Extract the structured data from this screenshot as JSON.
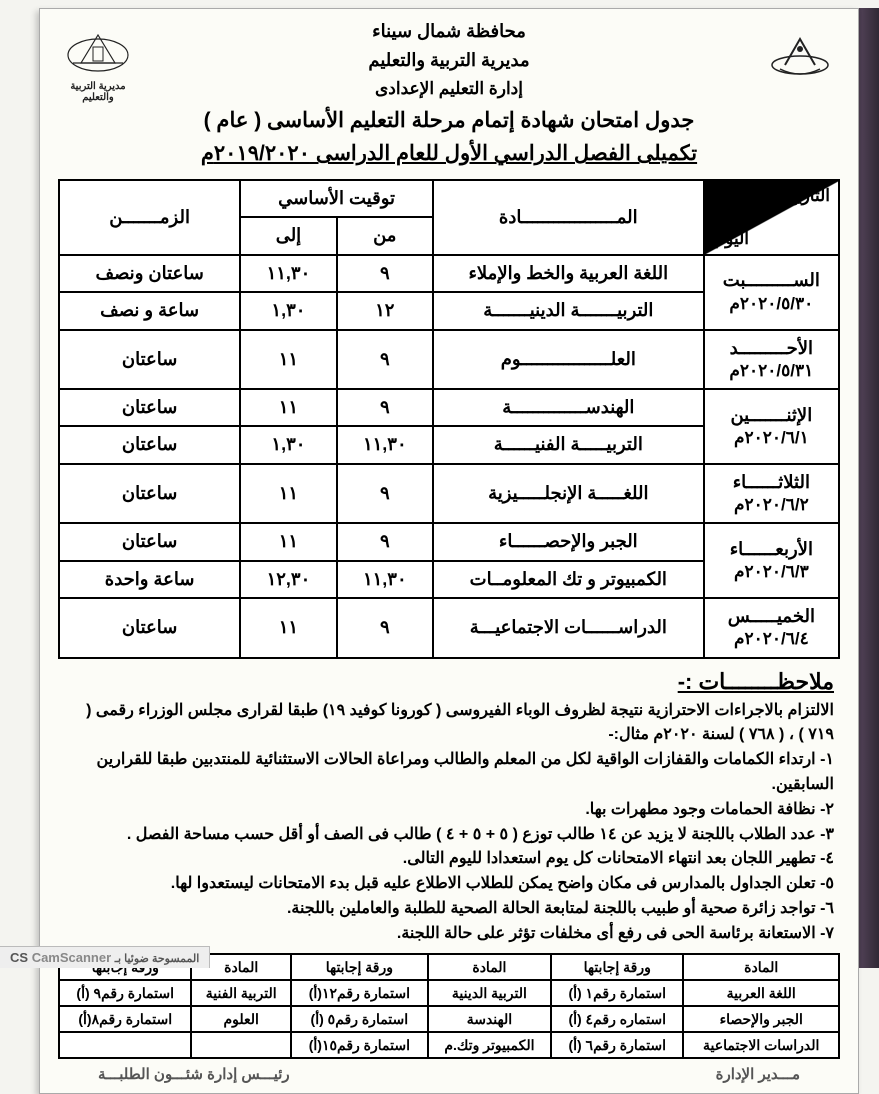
{
  "header": {
    "line1": "محافظة شمال سيناء",
    "line2": "مديرية التربية والتعليم",
    "line3": "إدارة التعليم الإعدادى",
    "line4": "جدول امتحان شهادة إتمام مرحلة التعليم الأساسى ( عام )",
    "line5": "تكميلى الفصل الدراسي الأول للعام الدراسى ٢٠١٩/٢٠٢٠م",
    "logo_left_caption": "مديرية التربية والتعليم"
  },
  "mainTable": {
    "head": {
      "date_top": "التاريخ",
      "date_bottom": "اليوم",
      "subject": "المــــــــــــــــــادة",
      "timing": "توقيت الأساسي",
      "from": "من",
      "to": "إلى",
      "duration": "الزمـــــــن"
    },
    "colWidths": {
      "date": "118px",
      "subject": "236px",
      "from": "84px",
      "to": "84px",
      "dur": "158px"
    },
    "rows": [
      {
        "day": "الســـــــــبت",
        "date": "٢٠٢٠/٥/٣٠م",
        "subjects": [
          {
            "subject": "اللغة العربية والخط والإملاء",
            "from": "٩",
            "to": "١١,٣٠",
            "dur": "ساعتان ونصف"
          },
          {
            "subject": "التربيـــــــة الدينيـــــــة",
            "from": "١٢",
            "to": "١,٣٠",
            "dur": "ساعة و نصف"
          }
        ]
      },
      {
        "day": "الأحـــــــــد",
        "date": "٢٠٢٠/٥/٣١م",
        "subjects": [
          {
            "subject": "العلـــــــــــــــــوم",
            "from": "٩",
            "to": "١١",
            "dur": "ساعتان"
          }
        ]
      },
      {
        "day": "الإثنـــــــين",
        "date": "٢٠٢٠/٦/١م",
        "subjects": [
          {
            "subject": "الهندســــــــــــــة",
            "from": "٩",
            "to": "١١",
            "dur": "ساعتان"
          },
          {
            "subject": "التربيـــــة الفنيــــــة",
            "from": "١١,٣٠",
            "to": "١,٣٠",
            "dur": "ساعتان"
          }
        ]
      },
      {
        "day": "الثلاثــــــاء",
        "date": "٢٠٢٠/٦/٢م",
        "subjects": [
          {
            "subject": "اللغـــــة الإنجلـــــيزية",
            "from": "٩",
            "to": "١١",
            "dur": "ساعتان"
          }
        ]
      },
      {
        "day": "الأربعــــــاء",
        "date": "٢٠٢٠/٦/٣م",
        "subjects": [
          {
            "subject": "الجبر والإحصــــــاء",
            "from": "٩",
            "to": "١١",
            "dur": "ساعتان"
          },
          {
            "subject": "الكمبيوتر و تك المعلومــات",
            "from": "١١,٣٠",
            "to": "١٢,٣٠",
            "dur": "ساعة واحدة"
          }
        ]
      },
      {
        "day": "الخميـــــس",
        "date": "٢٠٢٠/٦/٤م",
        "subjects": [
          {
            "subject": "الدراســــــات الاجتماعيـــة",
            "from": "٩",
            "to": "١١",
            "dur": "ساعتان"
          }
        ]
      }
    ]
  },
  "notes": {
    "title": "ملاحظــــــــات :-",
    "intro": "الالتزام بالاجراءات الاحترازية نتيجة لظروف الوباء الفيروسى ( كورونا كوفيد ١٩) طبقا لقرارى مجلس الوزراء رقمى ( ٧١٩ ) ، ( ٧٦٨ ) لسنة ٢٠٢٠م مثال:-",
    "items": [
      "١- ارتداء الكمامات والقفازات الواقية لكل من المعلم والطالب ومراعاة الحالات الاستثنائية للمنتدبين طبقا للقرارين السابقين.",
      "٢- نظافة الحمامات وجود مطهرات بها.",
      "٣- عدد الطلاب باللجنة لا يزيد عن ١٤ طالب توزع ( ٥ + ٥ + ٤ ) طالب فى الصف أو أقل حسب مساحة الفصل .",
      "٤- تطهير اللجان بعد انتهاء الامتحانات كل يوم استعدادا لليوم التالى.",
      "٥- تعلن الجداول بالمدارس فى مكان واضح يمكن للطلاب الاطلاع عليه قبل بدء الامتحانات ليستعدوا لها.",
      "٦- تواجد زائرة صحية أو طبيب باللجنة لمتابعة الحالة الصحية للطلبة والعاملين باللجنة.",
      "٧- الاستعانة برئاسة الحى فى رفع أى مخلفات تؤثر على حالة اللجنة."
    ]
  },
  "formsTable": {
    "cols": [
      "المادة",
      "ورقة إجابتها",
      "المادة",
      "ورقة إجابتها",
      "المادة",
      "ورقة إجابتها"
    ],
    "rows": [
      [
        "اللغة العربية",
        "استمارة رقم١ (أ)",
        "التربية الدينية",
        "استمارة رقم١٢(أ)",
        "التربية الفنية",
        "استمارة رقم٩ (أ)"
      ],
      [
        "الجبر والإحصاء",
        "استماره رقم٤ (أ)",
        "الهندسة",
        "استمارة رقم٥ (أ)",
        "العلوم",
        "استمارة رقم٨(أ)"
      ],
      [
        "الدراسات الاجتماعية",
        "استمارة رقم٦ (أ)",
        "الكمبيوتر وتك.م",
        "استمارة رقم١٥(أ)",
        "",
        ""
      ]
    ]
  },
  "footerScribble": {
    "right": "مـــدير الإدارة",
    "left": "رئيـــس إدارة شئـــون الطلبـــة"
  },
  "scan": {
    "brand": "CS",
    "app": "CamScanner",
    "txt": "الممسوحة ضوئيا بـ"
  },
  "colors": {
    "ink": "#000000",
    "paper": "#fcfcf7",
    "edge": "#2a1f30"
  }
}
